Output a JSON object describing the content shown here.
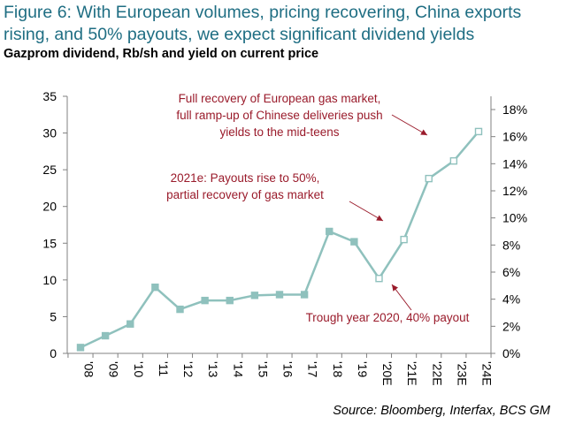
{
  "figure": {
    "title": "Figure 6: With European volumes, pricing recovering, China exports rising, and 50% payouts, we expect significant dividend yields",
    "subtitle": "Gazprom dividend, Rb/sh and yield on current price",
    "source": "Source: Bloomberg, Interfax, BCS GM"
  },
  "chart_data": {
    "type": "line",
    "title": "Gazprom dividend, Rb/sh and yield on current price",
    "x": [
      "'08",
      "'09",
      "'10",
      "'11",
      "'12",
      "'13",
      "'14",
      "'15",
      "'16",
      "'17",
      "'18",
      "'19",
      "'20E",
      "'21E",
      "'22E",
      "'23E",
      "'24E"
    ],
    "series": [
      {
        "values": [
          0.8,
          2.4,
          4.0,
          9.0,
          6.0,
          7.2,
          7.2,
          7.9,
          8.0,
          8.0,
          16.6,
          15.2,
          10.2,
          15.5,
          23.8,
          26.2,
          30.2
        ],
        "estimate_points": [
          "'20E",
          "'21E",
          "'22E",
          "'23E",
          "'24E"
        ],
        "color": "#8fc1bd"
      }
    ],
    "y_left": {
      "ylim": [
        0,
        35
      ],
      "ticks": [
        "0",
        "5",
        "10",
        "15",
        "20",
        "25",
        "30",
        "35"
      ]
    },
    "y_right": {
      "ylim": [
        0,
        0.19
      ],
      "ticks": [
        "0%",
        "2%",
        "4%",
        "6%",
        "8%",
        "10%",
        "12%",
        "14%",
        "16%",
        "18%"
      ]
    },
    "grid": false,
    "annotations": [
      {
        "lines": [
          "Full recovery of European gas market,",
          "full ramp-up of Chinese deliveries push",
          "yields to the mid-teens"
        ],
        "points_to": "'24E"
      },
      {
        "lines": [
          "2021e: Payouts rise to 50%,",
          "partial recovery of gas market"
        ],
        "points_to": "'21E"
      },
      {
        "lines": [
          "Trough year 2020, 40% payout"
        ],
        "points_to": "'20E"
      }
    ],
    "colors": {
      "line": "#8fc1bd",
      "marker_edge": "#8fc1bd",
      "annotation": "#9a1b2b",
      "axis": "#808080",
      "title": "#1f6e83"
    }
  }
}
